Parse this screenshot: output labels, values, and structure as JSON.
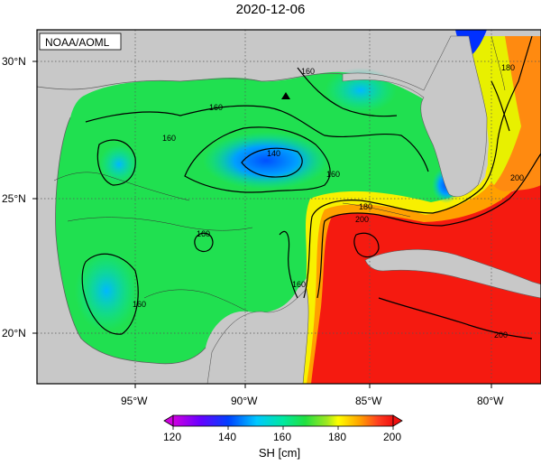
{
  "title": "2020-12-06",
  "credit": "NOAA/AOML",
  "variable": "SH [cm]",
  "lon_ticks": [
    "95°W",
    "90°W",
    "85°W",
    "80°W"
  ],
  "lat_ticks": [
    "30°N",
    "25°N",
    "20°N"
  ],
  "colorbar": {
    "min": 120,
    "max": 200,
    "tick_labels": [
      "120",
      "140",
      "160",
      "180",
      "200"
    ],
    "colors": [
      "#d000e0",
      "#6a00ff",
      "#0040ff",
      "#00c8ff",
      "#00e8a0",
      "#20e040",
      "#a0e820",
      "#ffff00",
      "#ffa000",
      "#ff4020",
      "#f01010"
    ]
  },
  "contour_labels": [
    "160",
    "160",
    "160",
    "140",
    "160",
    "160",
    "160",
    "160",
    "180",
    "200",
    "180",
    "200",
    "200"
  ],
  "land_color": "#c8c8c8",
  "marker": "triangle"
}
